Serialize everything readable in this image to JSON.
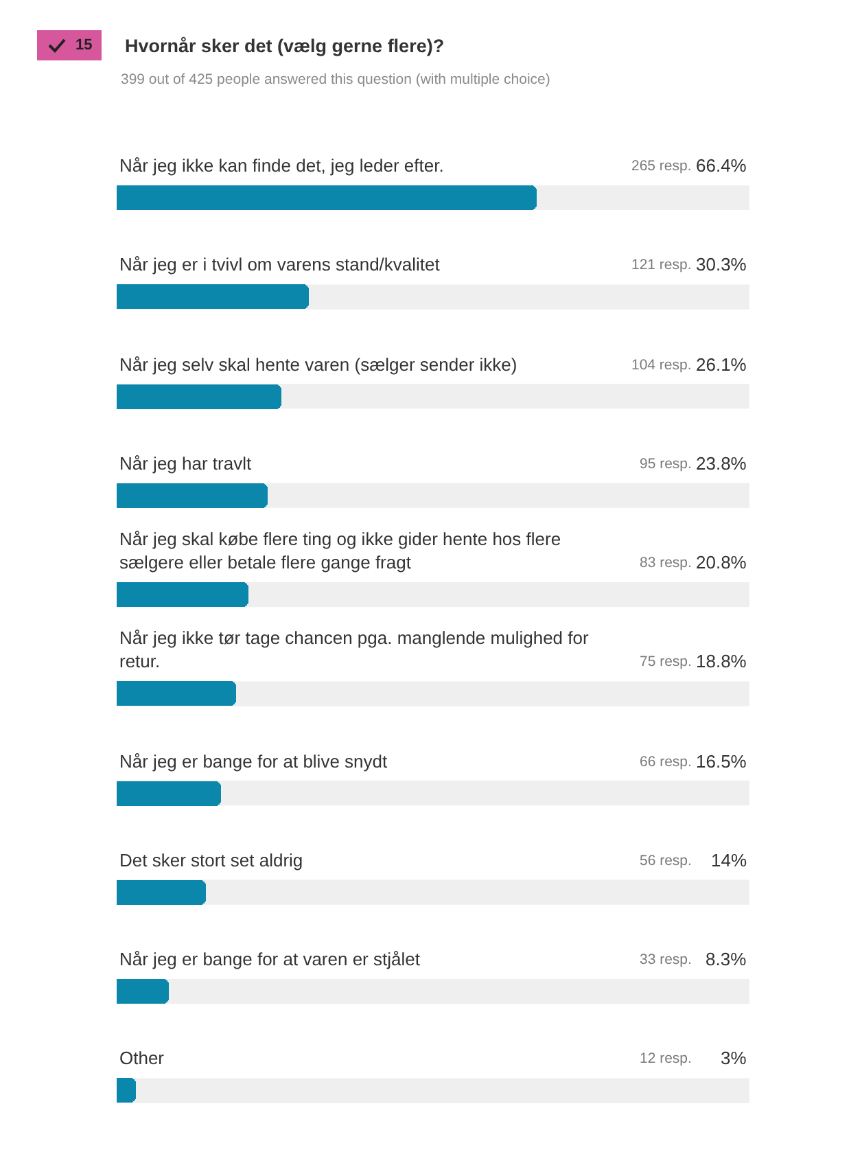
{
  "chart_data": {
    "type": "bar",
    "orientation": "horizontal",
    "title": "Hvornår sker det (vælg gerne flere)?",
    "subtitle": "399 out of 425 people answered this question (with multiple choice)",
    "categories": [
      "Når jeg ikke kan finde det, jeg leder efter.",
      "Når jeg er i tvivl om varens stand/kvalitet",
      "Når jeg selv skal hente varen (sælger sender ikke)",
      "Når jeg har travlt",
      "Når jeg skal købe flere ting og ikke gider hente hos flere sælgere eller betale flere gange fragt",
      "Når jeg ikke tør tage chancen pga. manglende mulighed for retur.",
      "Når jeg er bange for at blive snydt",
      "Det sker stort set aldrig",
      "Når jeg er bange for at varen er stjålet",
      "Other"
    ],
    "values": [
      66.4,
      30.3,
      26.1,
      23.8,
      20.8,
      18.8,
      16.5,
      14,
      8.3,
      3
    ],
    "color": "#0b87ac",
    "xlim": [
      0,
      100
    ],
    "value_labels": [
      "66.4%",
      "30.3%",
      "26.1%",
      "23.8%",
      "20.8%",
      "18.8%",
      "16.5%",
      "14%",
      "8.3%",
      "3%"
    ],
    "annotations": [
      "15",
      "265 resp.",
      "121 resp.",
      "104 resp.",
      "95 resp.",
      "83 resp.",
      "75 resp.",
      "66 resp.",
      "56 resp.",
      "33 resp.",
      "12 resp."
    ]
  }
}
